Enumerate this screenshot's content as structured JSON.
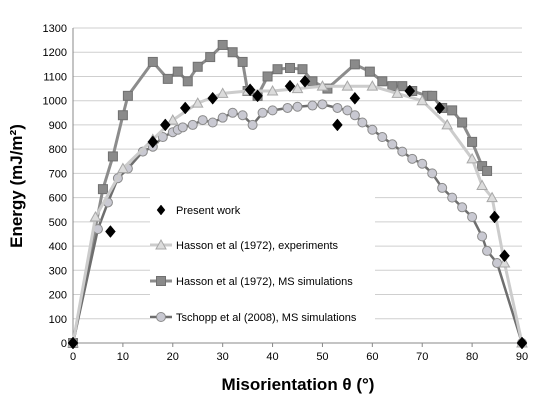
{
  "chart_data": {
    "type": "scatter",
    "xlabel": "Misorientation θ (°)",
    "ylabel": "Energy (mJ/m²)",
    "xlim": [
      0,
      90
    ],
    "ylim": [
      0,
      1300
    ],
    "xticks": [
      "0",
      "10",
      "20",
      "30",
      "40",
      "50",
      "60",
      "70",
      "80",
      "90"
    ],
    "yticks": [
      "0",
      "100",
      "200",
      "300",
      "400",
      "500",
      "600",
      "700",
      "800",
      "900",
      "1000",
      "1100",
      "1200",
      "1300"
    ],
    "grid": "horizontal",
    "legend_position": "center-left",
    "series": [
      {
        "name": "Present work",
        "marker": "diamond",
        "line": false,
        "color": "#000000",
        "x": [
          0,
          7.5,
          16,
          18.5,
          22.5,
          28,
          35.5,
          37,
          43.5,
          46.5,
          53,
          56.5,
          67.5,
          73.5,
          84.5,
          86.5,
          90
        ],
        "y": [
          0,
          460,
          830,
          900,
          970,
          1010,
          1045,
          1020,
          1060,
          1080,
          900,
          1010,
          1040,
          970,
          520,
          360,
          0
        ]
      },
      {
        "name": "Hasson et al (1972), experiments",
        "marker": "triangle",
        "line": true,
        "color": "#cccccc",
        "x": [
          0,
          4.5,
          10,
          16,
          20,
          25,
          30,
          35,
          40,
          45,
          50,
          55,
          60,
          65,
          70,
          75,
          80,
          82,
          84,
          86.5,
          90
        ],
        "y": [
          0,
          520,
          720,
          840,
          920,
          990,
          1030,
          1040,
          1040,
          1050,
          1060,
          1060,
          1060,
          1030,
          1000,
          900,
          760,
          650,
          600,
          330,
          0
        ]
      },
      {
        "name": "Hasson et al (1972), MS simulations",
        "marker": "square",
        "line": true,
        "color": "#888888",
        "x": [
          0,
          6,
          8,
          10,
          11,
          16,
          19,
          21,
          23,
          25,
          27.5,
          30,
          32,
          34,
          35,
          37,
          39,
          41,
          43.5,
          46,
          48,
          51,
          56.5,
          59.5,
          62,
          64,
          66,
          68,
          71,
          72,
          74,
          76,
          78,
          80,
          82,
          83
        ],
        "y": [
          0,
          635,
          770,
          940,
          1020,
          1160,
          1090,
          1120,
          1080,
          1140,
          1180,
          1230,
          1200,
          1160,
          1040,
          1020,
          1100,
          1130,
          1135,
          1130,
          1080,
          1050,
          1150,
          1120,
          1080,
          1060,
          1060,
          1040,
          1020,
          1020,
          970,
          960,
          910,
          830,
          730,
          710
        ]
      },
      {
        "name": "Tschopp et al (2008), MS simulations",
        "marker": "circle",
        "line": true,
        "color": "#666666",
        "x": [
          0,
          5,
          7,
          9,
          11,
          14,
          16,
          18,
          20,
          21,
          22,
          24,
          26,
          28,
          30,
          32,
          34,
          36,
          38,
          40,
          43,
          45,
          48,
          50,
          53,
          55,
          56.5,
          58,
          60,
          62,
          64,
          66,
          68,
          70,
          72,
          74,
          76,
          78,
          80,
          82,
          83,
          85,
          90
        ],
        "y": [
          0,
          470,
          580,
          680,
          720,
          790,
          810,
          850,
          870,
          880,
          890,
          900,
          920,
          910,
          930,
          950,
          940,
          900,
          950,
          960,
          970,
          975,
          980,
          985,
          970,
          960,
          940,
          910,
          880,
          850,
          820,
          790,
          760,
          740,
          700,
          640,
          600,
          560,
          520,
          440,
          380,
          330,
          0
        ]
      }
    ]
  }
}
